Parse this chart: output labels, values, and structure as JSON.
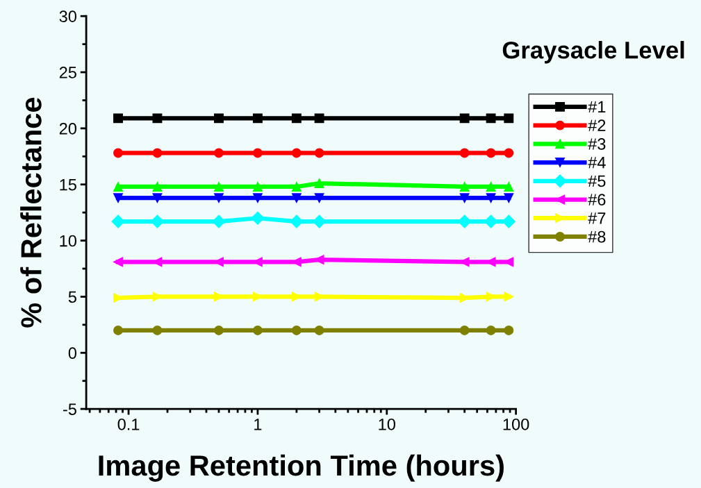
{
  "chart_data": {
    "type": "line",
    "title": "Graysacle Level",
    "xlabel": "Image Retention Time (hours)",
    "ylabel": "% of Reflectance",
    "x": [
      0.083,
      0.167,
      0.5,
      1,
      2,
      3,
      40,
      64,
      88
    ],
    "log": "x",
    "xlim": [
      0.047,
      100
    ],
    "xticks": [
      0.1,
      1,
      10,
      100
    ],
    "ylim": [
      -5,
      30
    ],
    "yticks": [
      -5,
      0,
      5,
      10,
      15,
      20,
      25,
      30
    ],
    "grid": false,
    "legend": "right",
    "line_style": "solid",
    "series": [
      {
        "name": "#1",
        "color": "#000000",
        "marker": "square",
        "values": [
          20.9,
          20.9,
          20.9,
          20.9,
          20.9,
          20.9,
          20.9,
          20.9,
          20.9
        ]
      },
      {
        "name": "#2",
        "color": "#ff0000",
        "marker": "circle",
        "values": [
          17.8,
          17.8,
          17.8,
          17.8,
          17.8,
          17.8,
          17.8,
          17.8,
          17.8
        ]
      },
      {
        "name": "#3",
        "color": "#00ff00",
        "marker": "triangle",
        "values": [
          14.8,
          14.8,
          14.8,
          14.8,
          14.8,
          15.1,
          14.8,
          14.8,
          14.8
        ]
      },
      {
        "name": "#4",
        "color": "#0000ff",
        "marker": "triangle_down",
        "values": [
          13.8,
          13.8,
          13.8,
          13.8,
          13.8,
          13.8,
          13.8,
          13.8,
          13.8
        ]
      },
      {
        "name": "#5",
        "color": "#00ffff",
        "marker": "diamond",
        "values": [
          11.7,
          11.7,
          11.7,
          12.0,
          11.7,
          11.7,
          11.7,
          11.7,
          11.7
        ]
      },
      {
        "name": "#6",
        "color": "#ff00ff",
        "marker": "triangle_left",
        "values": [
          8.1,
          8.1,
          8.1,
          8.1,
          8.1,
          8.3,
          8.1,
          8.1,
          8.1
        ]
      },
      {
        "name": "#7",
        "color": "#ffff00",
        "marker": "triangle_right",
        "values": [
          4.9,
          5.0,
          5.0,
          5.0,
          5.0,
          5.0,
          4.9,
          5.0,
          5.0
        ]
      },
      {
        "name": "#8",
        "color": "#808000",
        "marker": "circle",
        "values": [
          2.0,
          2.0,
          2.0,
          2.0,
          2.0,
          2.0,
          2.0,
          2.0,
          2.0
        ]
      }
    ]
  }
}
